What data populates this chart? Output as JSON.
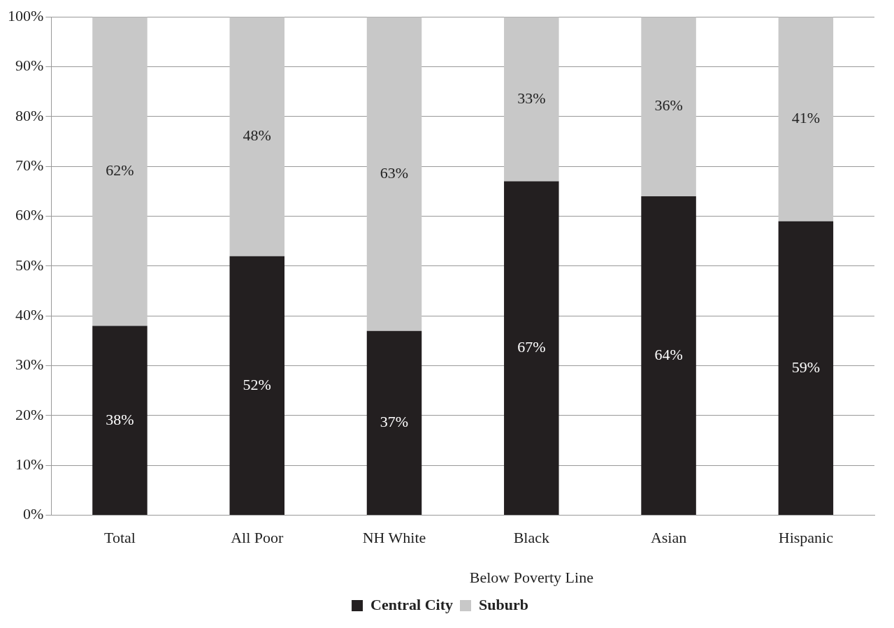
{
  "chart_data": {
    "type": "bar",
    "stacked": true,
    "categories": [
      "Total",
      "All Poor",
      "NH White",
      "Black",
      "Asian",
      "Hispanic"
    ],
    "series": [
      {
        "name": "Central City",
        "color": "#231f20",
        "values": [
          38,
          52,
          37,
          67,
          64,
          59
        ],
        "value_labels": [
          "38%",
          "52%",
          "37%",
          "67%",
          "64%",
          "59%"
        ]
      },
      {
        "name": "Suburb",
        "color": "#c8c8c8",
        "values": [
          62,
          48,
          63,
          33,
          36,
          41
        ],
        "value_labels": [
          "62%",
          "48%",
          "63%",
          "33%",
          "36%",
          "41%"
        ]
      }
    ],
    "ylim": [
      0,
      100
    ],
    "yticks": [
      {
        "value": 0,
        "label": "0%"
      },
      {
        "value": 10,
        "label": "10%"
      },
      {
        "value": 20,
        "label": "20%"
      },
      {
        "value": 30,
        "label": "30%"
      },
      {
        "value": 40,
        "label": "40%"
      },
      {
        "value": 50,
        "label": "50%"
      },
      {
        "value": 60,
        "label": "60%"
      },
      {
        "value": 70,
        "label": "70%"
      },
      {
        "value": 80,
        "label": "80%"
      },
      {
        "value": 90,
        "label": "90%"
      },
      {
        "value": 100,
        "label": "100%"
      }
    ],
    "grid": "y",
    "legend": "bottom",
    "annotations": [
      "Below Poverty Line"
    ]
  }
}
